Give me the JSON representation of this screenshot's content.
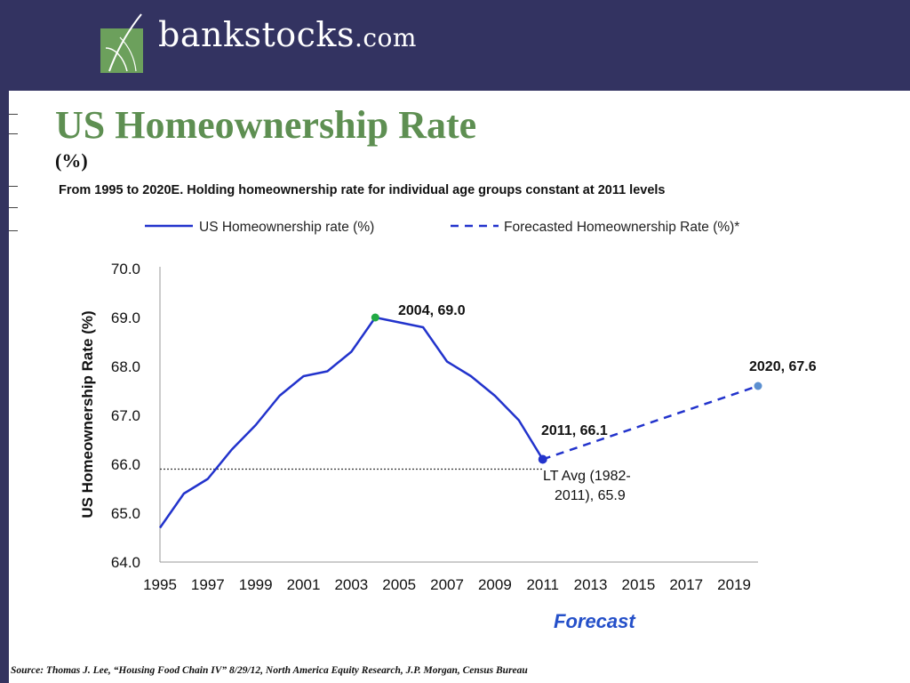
{
  "header": {
    "logo_text": "bankstocks",
    "logo_suffix": ".com",
    "colors": {
      "banner": "#333361",
      "logo_green": "#6ca05c"
    }
  },
  "slide": {
    "title": "US Homeownership Rate",
    "subtitle": "(%)",
    "description": "From 1995 to 2020E. Holding homeownership rate for individual age groups constant at 2011 levels",
    "source": "Source: Thomas J. Lee, “Housing Food Chain IV” 8/29/12, North America Equity Research, J.P. Morgan, Census Bureau",
    "title_color": "#5e8f52"
  },
  "chart_data": {
    "type": "line",
    "ylabel": "US Homeownership Rate (%)",
    "ylim": [
      64.0,
      70.0
    ],
    "y_ticks": [
      "70.0",
      "69.0",
      "68.0",
      "67.0",
      "66.0",
      "65.0",
      "64.0"
    ],
    "x_ticks": [
      "1995",
      "1997",
      "1999",
      "2001",
      "2003",
      "2005",
      "2007",
      "2009",
      "2011",
      "2013",
      "2015",
      "2017",
      "2019"
    ],
    "xlim": [
      1995,
      2020
    ],
    "grid": false,
    "legend_position": "top",
    "series": [
      {
        "name": "US Homeownership rate (%)",
        "style": "solid",
        "color": "#2233cc",
        "x": [
          1995,
          1996,
          1997,
          1998,
          1999,
          2000,
          2001,
          2002,
          2003,
          2004,
          2005,
          2006,
          2007,
          2008,
          2009,
          2010,
          2011
        ],
        "y": [
          64.7,
          65.4,
          65.7,
          66.3,
          66.8,
          67.4,
          67.8,
          67.9,
          68.3,
          69.0,
          68.9,
          68.8,
          68.1,
          67.8,
          67.4,
          66.9,
          66.1
        ]
      },
      {
        "name": "Forecasted Homeownership Rate (%)*",
        "style": "dashed",
        "color": "#2233cc",
        "x": [
          2011,
          2020
        ],
        "y": [
          66.1,
          67.6
        ]
      }
    ],
    "reference_line": {
      "y": 65.9,
      "style": "dotted",
      "color": "#333333"
    },
    "annotations": [
      {
        "text": "2004, 69.0",
        "x": 2004,
        "y": 69.0,
        "marker_color": "#22aa44"
      },
      {
        "text": "2011, 66.1",
        "x": 2011,
        "y": 66.1,
        "marker_color": "#2233cc"
      },
      {
        "text": "2020, 67.6",
        "x": 2020,
        "y": 67.6,
        "marker_color": "#5b8fd0"
      },
      {
        "text_line1": "LT Avg (1982-",
        "text_line2": "2011), 65.9"
      }
    ],
    "forecast_label": "Forecast"
  }
}
